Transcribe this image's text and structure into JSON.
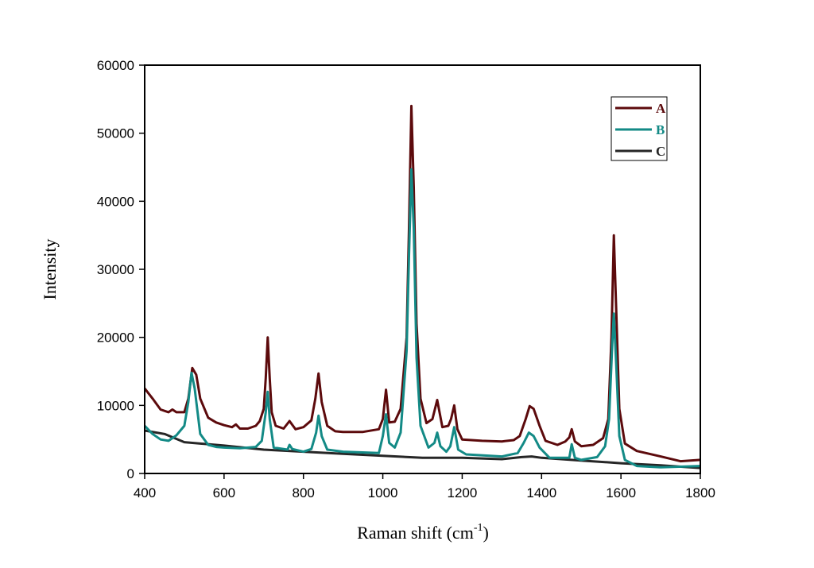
{
  "chart_data": {
    "type": "line",
    "title": "",
    "xlabel": "Raman shift (cm",
    "xlabel_sup": "-1",
    "xlabel_end": ")",
    "ylabel": "Intensity",
    "xlim": [
      400,
      1800
    ],
    "ylim": [
      0,
      60000
    ],
    "xticks": [
      400,
      600,
      800,
      1000,
      1200,
      1400,
      1600,
      1800
    ],
    "yticks": [
      0,
      10000,
      20000,
      30000,
      40000,
      50000,
      60000
    ],
    "grid": false,
    "legend_position": "top-right",
    "series": [
      {
        "name": "A",
        "color": "#5c0a0c",
        "x": [
          400,
          420,
          440,
          460,
          470,
          480,
          500,
          510,
          520,
          530,
          540,
          560,
          580,
          600,
          620,
          630,
          640,
          660,
          680,
          690,
          700,
          705,
          710,
          715,
          720,
          730,
          750,
          765,
          780,
          800,
          820,
          830,
          838,
          846,
          860,
          880,
          900,
          950,
          990,
          1000,
          1008,
          1016,
          1030,
          1045,
          1060,
          1066,
          1072,
          1078,
          1085,
          1095,
          1110,
          1125,
          1137,
          1150,
          1165,
          1172,
          1180,
          1188,
          1200,
          1250,
          1300,
          1330,
          1345,
          1360,
          1370,
          1380,
          1395,
          1410,
          1440,
          1460,
          1470,
          1476,
          1484,
          1500,
          1530,
          1555,
          1568,
          1576,
          1582,
          1588,
          1596,
          1610,
          1640,
          1700,
          1750,
          1800
        ],
        "y": [
          12500,
          11000,
          9400,
          9000,
          9400,
          9000,
          9000,
          11000,
          15500,
          14500,
          11000,
          8200,
          7500,
          7100,
          6800,
          7200,
          6600,
          6600,
          7000,
          7700,
          9500,
          14000,
          20000,
          14000,
          9000,
          7000,
          6600,
          7700,
          6500,
          6800,
          7800,
          11000,
          14700,
          10500,
          7000,
          6200,
          6100,
          6100,
          6500,
          8000,
          12300,
          7500,
          7600,
          9500,
          20000,
          36000,
          54000,
          42000,
          22000,
          11000,
          7400,
          8000,
          10800,
          6800,
          7000,
          8000,
          10000,
          6500,
          5000,
          4800,
          4700,
          4900,
          5500,
          8000,
          9900,
          9500,
          7000,
          4800,
          4200,
          4700,
          5300,
          6500,
          4700,
          4000,
          4200,
          5200,
          8000,
          20000,
          35000,
          24000,
          9500,
          4400,
          3300,
          2500,
          1800,
          2000
        ]
      },
      {
        "name": "B",
        "color": "#138a86",
        "x": [
          400,
          420,
          440,
          460,
          480,
          500,
          510,
          518,
          526,
          540,
          560,
          580,
          600,
          640,
          680,
          695,
          705,
          710,
          715,
          725,
          760,
          765,
          772,
          800,
          820,
          832,
          838,
          846,
          860,
          900,
          990,
          1000,
          1008,
          1016,
          1030,
          1045,
          1060,
          1066,
          1072,
          1078,
          1085,
          1095,
          1115,
          1130,
          1137,
          1145,
          1160,
          1170,
          1180,
          1190,
          1210,
          1300,
          1340,
          1355,
          1368,
          1380,
          1395,
          1420,
          1470,
          1476,
          1484,
          1500,
          1540,
          1560,
          1570,
          1578,
          1582,
          1588,
          1596,
          1610,
          1640,
          1700,
          1800
        ],
        "y": [
          7000,
          5800,
          5000,
          4800,
          5600,
          7000,
          10500,
          14800,
          12500,
          5800,
          4200,
          3900,
          3800,
          3700,
          3900,
          4800,
          9000,
          12000,
          8000,
          3800,
          3500,
          4200,
          3600,
          3200,
          3600,
          6000,
          8500,
          5500,
          3500,
          3200,
          3000,
          5500,
          8700,
          4500,
          3800,
          6000,
          18000,
          32000,
          44700,
          36000,
          17000,
          7000,
          3800,
          4500,
          6000,
          4000,
          3200,
          4000,
          6800,
          3500,
          2800,
          2500,
          3000,
          4500,
          6000,
          5500,
          3800,
          2300,
          2300,
          4300,
          2300,
          2000,
          2400,
          4000,
          8000,
          19000,
          23500,
          16000,
          5500,
          2000,
          1100,
          900,
          1100
        ]
      },
      {
        "name": "C",
        "color": "#262626",
        "x": [
          400,
          450,
          500,
          600,
          700,
          800,
          900,
          1000,
          1100,
          1200,
          1300,
          1350,
          1375,
          1400,
          1500,
          1600,
          1700,
          1800
        ],
        "y": [
          6300,
          5800,
          4600,
          4100,
          3500,
          3200,
          2900,
          2600,
          2300,
          2300,
          2100,
          2400,
          2500,
          2300,
          1900,
          1500,
          1200,
          800
        ]
      }
    ]
  }
}
